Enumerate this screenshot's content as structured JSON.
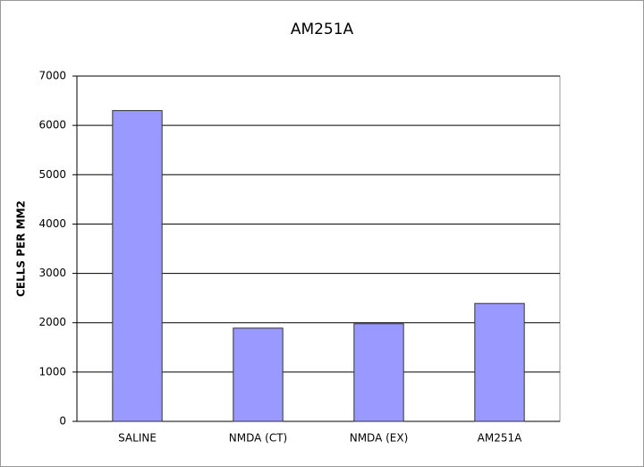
{
  "chart_data": {
    "type": "bar",
    "title": "AM251A",
    "y_label": "CELLS PER MM2",
    "categories": [
      "SALINE",
      "NMDA (CT)",
      "NMDA (EX)",
      "AM251A"
    ],
    "values": [
      6300,
      1890,
      1980,
      2390
    ],
    "color": "#9999ff",
    "ylim": [
      0,
      7000
    ],
    "yticks": [
      0,
      1000,
      2000,
      3000,
      4000,
      5000,
      6000,
      7000
    ],
    "grid": true
  }
}
